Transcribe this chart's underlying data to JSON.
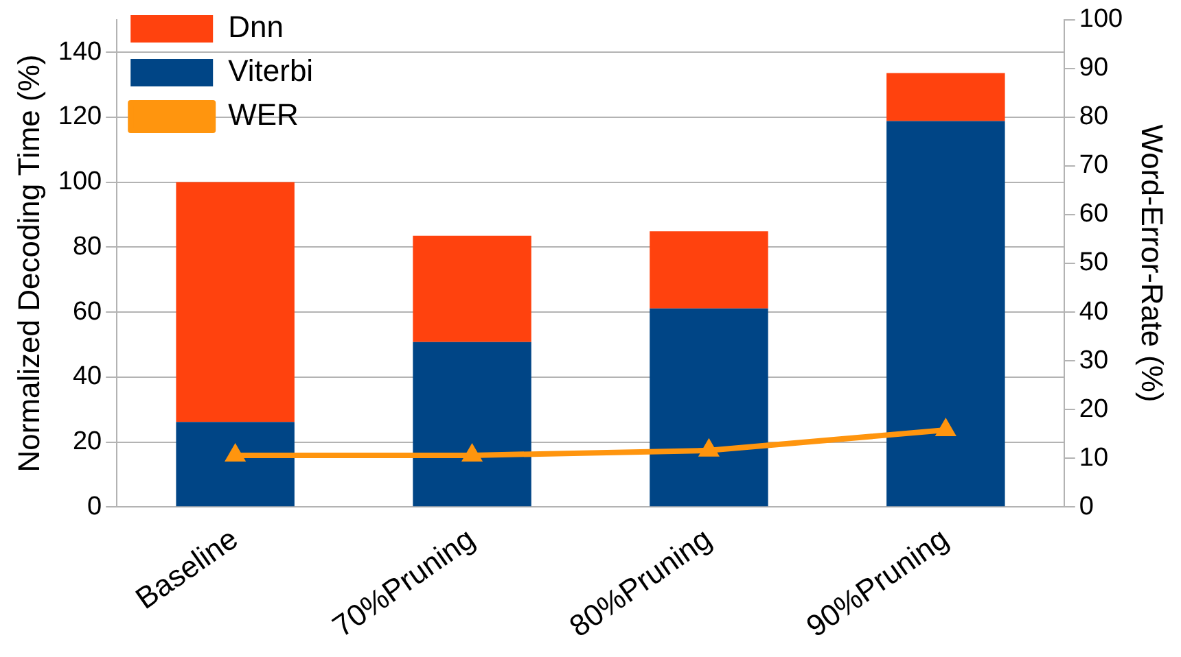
{
  "chart_data": {
    "type": "bar",
    "stacked": true,
    "categories": [
      "Baseline",
      "70%Pruning",
      "80%Pruning",
      "90%Pruning"
    ],
    "ylabel": "Normalized Decoding Time (%)",
    "y2label": "Word-Error-Rate (%)",
    "ylim": [
      0,
      150
    ],
    "yticks": [
      0,
      20,
      40,
      60,
      80,
      100,
      120,
      140
    ],
    "y2lim": [
      0,
      100
    ],
    "y2ticks": [
      0,
      10,
      20,
      30,
      40,
      50,
      60,
      70,
      80,
      90,
      100
    ],
    "grid": "y",
    "legend": "top left",
    "marker": "triangle",
    "series": [
      {
        "name": "Viterbi",
        "color": "#004586",
        "values": [
          26.2,
          50.8,
          61.1,
          118.8
        ]
      },
      {
        "name": "Dnn",
        "color": "#ff420e",
        "values": [
          73.8,
          32.7,
          23.8,
          14.8
        ]
      },
      {
        "name": "WER",
        "type": "line",
        "axis": "y2",
        "color": "#ff950e",
        "values": [
          10.6,
          10.6,
          11.6,
          15.8
        ]
      }
    ]
  }
}
